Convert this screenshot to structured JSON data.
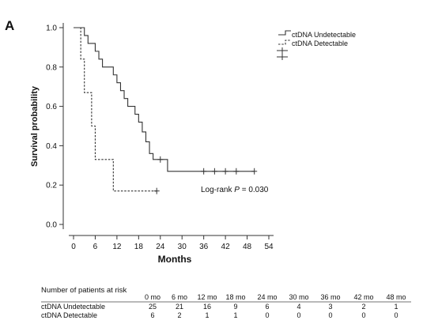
{
  "panel_label": "A",
  "chart_data": {
    "type": "line",
    "subtype": "kaplan-meier",
    "xlabel": "Months",
    "ylabel": "Survival probability",
    "xlim": [
      0,
      54
    ],
    "ylim": [
      0,
      1.0
    ],
    "x_ticks": [
      0,
      6,
      12,
      18,
      24,
      30,
      36,
      42,
      48,
      54
    ],
    "y_ticks": [
      0.0,
      0.2,
      0.4,
      0.6,
      0.8,
      1.0
    ],
    "y_tick_labels": [
      "0.0",
      "0.2",
      "0.4",
      "0.6",
      "0.8",
      "1.0"
    ],
    "legend_position": "top-right",
    "annotation": {
      "prefix": "Log-rank ",
      "italic": "P",
      "suffix": " = 0.030"
    },
    "series": [
      {
        "name": "ctDNA Undetectable",
        "style": "solid",
        "color": "#333333",
        "steps": [
          [
            0,
            1.0
          ],
          [
            3,
            0.96
          ],
          [
            4,
            0.92
          ],
          [
            6,
            0.88
          ],
          [
            7,
            0.84
          ],
          [
            8,
            0.8
          ],
          [
            11,
            0.76
          ],
          [
            12,
            0.72
          ],
          [
            13,
            0.68
          ],
          [
            14,
            0.64
          ],
          [
            15,
            0.6
          ],
          [
            17,
            0.56
          ],
          [
            18,
            0.52
          ],
          [
            19,
            0.47
          ],
          [
            20,
            0.42
          ],
          [
            21,
            0.36
          ],
          [
            22,
            0.33
          ],
          [
            26,
            0.27
          ],
          [
            50,
            0.27
          ]
        ],
        "censored": [
          [
            24,
            0.33
          ],
          [
            36,
            0.27
          ],
          [
            39,
            0.27
          ],
          [
            42,
            0.27
          ],
          [
            45,
            0.27
          ],
          [
            50,
            0.27
          ]
        ]
      },
      {
        "name": "ctDNA Detectable",
        "style": "dashed",
        "color": "#555555",
        "steps": [
          [
            0,
            1.0
          ],
          [
            2,
            0.84
          ],
          [
            3,
            0.67
          ],
          [
            5,
            0.5
          ],
          [
            6,
            0.33
          ],
          [
            11,
            0.17
          ],
          [
            23,
            0.17
          ]
        ],
        "censored": [
          [
            23,
            0.17
          ]
        ]
      }
    ]
  },
  "risk_table": {
    "title": "Number of patients at risk",
    "columns": [
      "0 mo",
      "6 mo",
      "12 mo",
      "18 mo",
      "24 mo",
      "30 mo",
      "36 mo",
      "42 mo",
      "48 mo"
    ],
    "rows": [
      {
        "label": "ctDNA Undetectable",
        "values": [
          "25",
          "21",
          "16",
          "9",
          "6",
          "4",
          "3",
          "2",
          "1"
        ]
      },
      {
        "label": "ctDNA Detectable",
        "values": [
          "6",
          "2",
          "1",
          "1",
          "0",
          "0",
          "0",
          "0",
          "0"
        ]
      }
    ]
  }
}
